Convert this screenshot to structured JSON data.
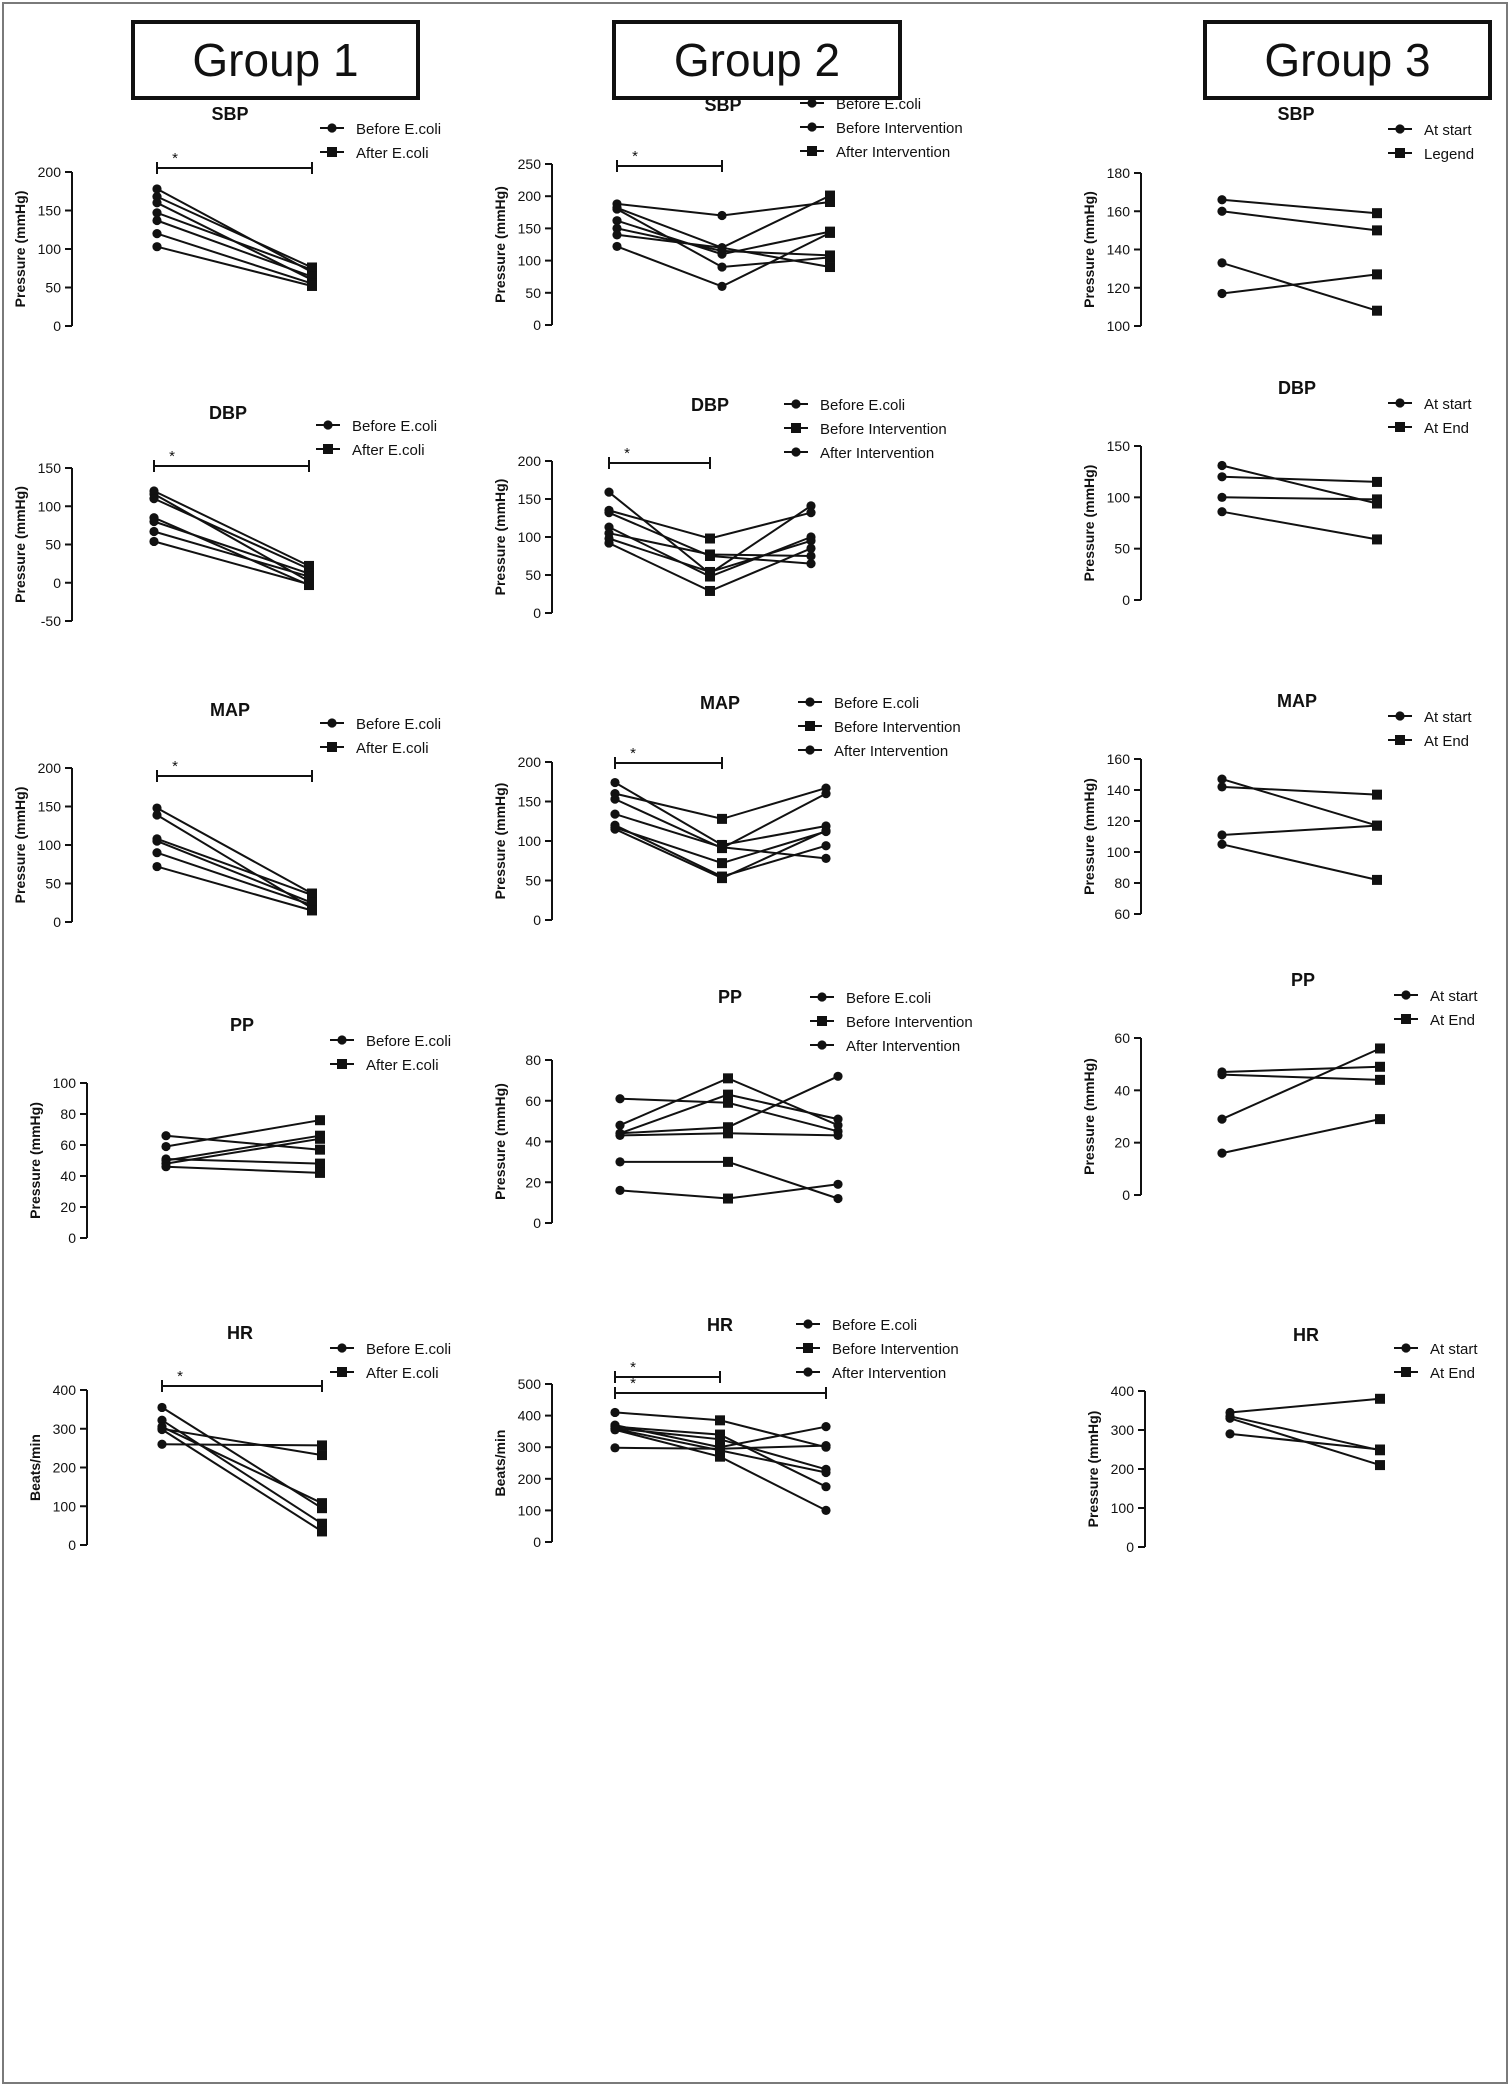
{
  "groups": [
    "Group 1",
    "Group 2",
    "Group 3"
  ],
  "chart_data": [
    {
      "id": "g1-sbp",
      "group": "Group 1",
      "type": "line",
      "title": "SBP",
      "ylabel": "Pressure (mmHg)",
      "ylim": [
        0,
        200
      ],
      "yticks": [
        0,
        50,
        100,
        150,
        200
      ],
      "categories": [
        "Before E.coli",
        "After E.coli"
      ],
      "legend": [
        {
          "label": "Before E.coli",
          "marker": "circle"
        },
        {
          "label": "After E.coli",
          "marker": "square"
        }
      ],
      "significance": [
        {
          "from": 0,
          "to": 1,
          "label": "*"
        }
      ],
      "series": [
        {
          "values": [
            178,
            70
          ]
        },
        {
          "values": [
            168,
            76
          ]
        },
        {
          "values": [
            160,
            60
          ]
        },
        {
          "values": [
            147,
            73
          ]
        },
        {
          "values": [
            137,
            64
          ]
        },
        {
          "values": [
            120,
            55
          ]
        },
        {
          "values": [
            103,
            52
          ]
        }
      ]
    },
    {
      "id": "g2-sbp",
      "group": "Group 2",
      "type": "line",
      "title": "SBP",
      "ylabel": "Pressure (mmHg)",
      "ylim": [
        0,
        250
      ],
      "yticks": [
        0,
        50,
        100,
        150,
        200,
        250
      ],
      "categories": [
        "Before E.coli",
        "Before Intervention",
        "After Intervention"
      ],
      "legend": [
        {
          "label": "Before E.coli",
          "marker": "circle"
        },
        {
          "label": "Before Intervention",
          "marker": "circle"
        },
        {
          "label": "After Intervention",
          "marker": "square"
        }
      ],
      "significance": [
        {
          "from": 0,
          "to": 1,
          "label": "*"
        }
      ],
      "series": [
        {
          "values": [
            188,
            170,
            191
          ]
        },
        {
          "values": [
            182,
            120,
            201
          ]
        },
        {
          "values": [
            162,
            110,
            145
          ]
        },
        {
          "values": [
            150,
            115,
            108
          ]
        },
        {
          "values": [
            140,
            120,
            90
          ]
        },
        {
          "values": [
            122,
            60,
            143
          ]
        },
        {
          "values": [
            180,
            90,
            105
          ]
        }
      ]
    },
    {
      "id": "g3-sbp",
      "group": "Group 3",
      "type": "line",
      "title": "SBP",
      "ylabel": "Pressure (mmHg)",
      "ylim": [
        100,
        180
      ],
      "yticks": [
        100,
        120,
        140,
        160,
        180
      ],
      "categories": [
        "At start",
        "Legend"
      ],
      "legend": [
        {
          "label": "At start",
          "marker": "circle"
        },
        {
          "label": "Legend",
          "marker": "square"
        }
      ],
      "significance": [],
      "series": [
        {
          "values": [
            166,
            159
          ]
        },
        {
          "values": [
            160,
            150
          ]
        },
        {
          "values": [
            133,
            108
          ]
        },
        {
          "values": [
            117,
            127
          ]
        }
      ]
    },
    {
      "id": "g1-dbp",
      "group": "Group 1",
      "type": "line",
      "title": "DBP",
      "ylabel": "Pressure (mmHg)",
      "ylim": [
        -50,
        150
      ],
      "yticks": [
        -50,
        0,
        50,
        100,
        150
      ],
      "categories": [
        "Before E.coli",
        "After E.coli"
      ],
      "legend": [
        {
          "label": "Before E.coli",
          "marker": "circle"
        },
        {
          "label": "After E.coli",
          "marker": "square"
        }
      ],
      "significance": [
        {
          "from": 0,
          "to": 1,
          "label": "*"
        }
      ],
      "series": [
        {
          "values": [
            120,
            22
          ]
        },
        {
          "values": [
            116,
            2
          ]
        },
        {
          "values": [
            110,
            18
          ]
        },
        {
          "values": [
            85,
            -3
          ]
        },
        {
          "values": [
            80,
            12
          ]
        },
        {
          "values": [
            67,
            8
          ]
        },
        {
          "values": [
            54,
            -2
          ]
        }
      ]
    },
    {
      "id": "g2-dbp",
      "group": "Group 2",
      "type": "line",
      "title": "DBP",
      "ylabel": "Pressure (mmHg)",
      "ylim": [
        0,
        200
      ],
      "yticks": [
        0,
        50,
        100,
        150,
        200
      ],
      "categories": [
        "Before E.coli",
        "Before Intervention",
        "After Intervention"
      ],
      "legend": [
        {
          "label": "Before E.coli",
          "marker": "circle"
        },
        {
          "label": "Before Intervention",
          "marker": "square"
        },
        {
          "label": "After Intervention",
          "marker": "circle"
        }
      ],
      "significance": [
        {
          "from": 0,
          "to": 1,
          "label": "*"
        }
      ],
      "series": [
        {
          "values": [
            159,
            52,
            141
          ]
        },
        {
          "values": [
            135,
            98,
            132
          ]
        },
        {
          "values": [
            132,
            75,
            65
          ]
        },
        {
          "values": [
            113,
            48,
            100
          ]
        },
        {
          "values": [
            105,
            77,
            75
          ]
        },
        {
          "values": [
            98,
            54,
            95
          ]
        },
        {
          "values": [
            92,
            29,
            85
          ]
        }
      ]
    },
    {
      "id": "g3-dbp",
      "group": "Group 3",
      "type": "line",
      "title": "DBP",
      "ylabel": "Pressure (mmHg)",
      "ylim": [
        0,
        150
      ],
      "yticks": [
        0,
        50,
        100,
        150
      ],
      "categories": [
        "At start",
        "At End"
      ],
      "legend": [
        {
          "label": "At start",
          "marker": "circle"
        },
        {
          "label": "At End",
          "marker": "square"
        }
      ],
      "significance": [],
      "series": [
        {
          "values": [
            131,
            94
          ]
        },
        {
          "values": [
            120,
            115
          ]
        },
        {
          "values": [
            100,
            98
          ]
        },
        {
          "values": [
            86,
            59
          ]
        }
      ]
    },
    {
      "id": "g1-map",
      "group": "Group 1",
      "type": "line",
      "title": "MAP",
      "ylabel": "Pressure (mmHg)",
      "ylim": [
        0,
        200
      ],
      "yticks": [
        0,
        50,
        100,
        150,
        200
      ],
      "categories": [
        "Before E.coli",
        "After E.coli"
      ],
      "legend": [
        {
          "label": "Before E.coli",
          "marker": "circle"
        },
        {
          "label": "After E.coli",
          "marker": "square"
        }
      ],
      "significance": [
        {
          "from": 0,
          "to": 1,
          "label": "*"
        }
      ],
      "series": [
        {
          "values": [
            148,
            37
          ]
        },
        {
          "values": [
            139,
            18
          ]
        },
        {
          "values": [
            108,
            35
          ]
        },
        {
          "values": [
            105,
            25
          ]
        },
        {
          "values": [
            90,
            22
          ]
        },
        {
          "values": [
            72,
            15
          ]
        }
      ]
    },
    {
      "id": "g2-map",
      "group": "Group 2",
      "type": "line",
      "title": "MAP",
      "ylabel": "Pressure (mmHg)",
      "ylim": [
        0,
        200
      ],
      "yticks": [
        0,
        50,
        100,
        150,
        200
      ],
      "categories": [
        "Before E.coli",
        "Before Intervention",
        "After Intervention"
      ],
      "legend": [
        {
          "label": "Before E.coli",
          "marker": "circle"
        },
        {
          "label": "Before Intervention",
          "marker": "square"
        },
        {
          "label": "After Intervention",
          "marker": "circle"
        }
      ],
      "significance": [
        {
          "from": 0,
          "to": 1,
          "label": "*"
        }
      ],
      "series": [
        {
          "values": [
            174,
            95,
            119
          ]
        },
        {
          "values": [
            160,
            128,
            167
          ]
        },
        {
          "values": [
            153,
            91,
            160
          ]
        },
        {
          "values": [
            134,
            92,
            78
          ]
        },
        {
          "values": [
            120,
            55,
            94
          ]
        },
        {
          "values": [
            117,
            72,
            112
          ]
        },
        {
          "values": [
            115,
            53,
            113
          ]
        }
      ]
    },
    {
      "id": "g3-map",
      "group": "Group 3",
      "type": "line",
      "title": "MAP",
      "ylabel": "Pressure (mmHg)",
      "ylim": [
        60,
        160
      ],
      "yticks": [
        60,
        80,
        100,
        120,
        140,
        160
      ],
      "categories": [
        "At start",
        "At End"
      ],
      "legend": [
        {
          "label": "At start",
          "marker": "circle"
        },
        {
          "label": "At End",
          "marker": "square"
        }
      ],
      "significance": [],
      "series": [
        {
          "values": [
            147,
            117
          ]
        },
        {
          "values": [
            142,
            137
          ]
        },
        {
          "values": [
            111,
            117
          ]
        },
        {
          "values": [
            105,
            82
          ]
        }
      ]
    },
    {
      "id": "g1-pp",
      "group": "Group 1",
      "type": "line",
      "title": "PP",
      "ylabel": "Pressure (mmHg)",
      "ylim": [
        0,
        100
      ],
      "yticks": [
        0,
        20,
        40,
        60,
        80,
        100
      ],
      "categories": [
        "Before E.coli",
        "After E.coli"
      ],
      "legend": [
        {
          "label": "Before E.coli",
          "marker": "circle"
        },
        {
          "label": "After E.coli",
          "marker": "square"
        }
      ],
      "significance": [],
      "series": [
        {
          "values": [
            66,
            57
          ]
        },
        {
          "values": [
            59,
            76
          ]
        },
        {
          "values": [
            51,
            48
          ]
        },
        {
          "values": [
            50,
            66
          ]
        },
        {
          "values": [
            48,
            64
          ]
        },
        {
          "values": [
            46,
            42
          ]
        }
      ]
    },
    {
      "id": "g2-pp",
      "group": "Group 2",
      "type": "line",
      "title": "PP",
      "ylabel": "Pressure (mmHg)",
      "ylim": [
        0,
        80
      ],
      "yticks": [
        0,
        20,
        40,
        60,
        80
      ],
      "categories": [
        "Before E.coli",
        "Before Intervention",
        "After Intervention"
      ],
      "legend": [
        {
          "label": "Before E.coli",
          "marker": "circle"
        },
        {
          "label": "Before Intervention",
          "marker": "square"
        },
        {
          "label": "After Intervention",
          "marker": "circle"
        }
      ],
      "significance": [],
      "series": [
        {
          "values": [
            61,
            59,
            45
          ]
        },
        {
          "values": [
            48,
            71,
            48
          ]
        },
        {
          "values": [
            44,
            63,
            51
          ]
        },
        {
          "values": [
            44,
            47,
            72
          ]
        },
        {
          "values": [
            43,
            44,
            43
          ]
        },
        {
          "values": [
            30,
            30,
            12
          ]
        },
        {
          "values": [
            16,
            12,
            19
          ]
        }
      ]
    },
    {
      "id": "g3-pp",
      "group": "Group 3",
      "type": "line",
      "title": "PP",
      "ylabel": "Pressure (mmHg)",
      "ylim": [
        0,
        60
      ],
      "yticks": [
        0,
        20,
        40,
        60
      ],
      "categories": [
        "At start",
        "At End"
      ],
      "legend": [
        {
          "label": "At start",
          "marker": "circle"
        },
        {
          "label": "At End",
          "marker": "square"
        }
      ],
      "significance": [],
      "series": [
        {
          "values": [
            47,
            49
          ]
        },
        {
          "values": [
            46,
            44
          ]
        },
        {
          "values": [
            29,
            56
          ]
        },
        {
          "values": [
            16,
            29
          ]
        }
      ]
    },
    {
      "id": "g1-hr",
      "group": "Group 1",
      "type": "line",
      "title": "HR",
      "ylabel": "Beats/min",
      "ylim": [
        0,
        400
      ],
      "yticks": [
        0,
        100,
        200,
        300,
        400
      ],
      "categories": [
        "Before E.coli",
        "After E.coli"
      ],
      "legend": [
        {
          "label": "Before E.coli",
          "marker": "circle"
        },
        {
          "label": "After E.coli",
          "marker": "square"
        }
      ],
      "significance": [
        {
          "from": 0,
          "to": 1,
          "label": "*"
        }
      ],
      "series": [
        {
          "values": [
            355,
            95
          ]
        },
        {
          "values": [
            322,
            55
          ]
        },
        {
          "values": [
            305,
            108
          ]
        },
        {
          "values": [
            298,
            35
          ]
        },
        {
          "values": [
            300,
            232
          ]
        },
        {
          "values": [
            260,
            257
          ]
        }
      ]
    },
    {
      "id": "g2-hr",
      "group": "Group 2",
      "type": "line",
      "title": "HR",
      "ylabel": "Beats/min",
      "ylim": [
        0,
        500
      ],
      "yticks": [
        0,
        100,
        200,
        300,
        400,
        500
      ],
      "categories": [
        "Before E.coli",
        "Before Intervention",
        "After Intervention"
      ],
      "legend": [
        {
          "label": "Before E.coli",
          "marker": "circle"
        },
        {
          "label": "Before Intervention",
          "marker": "square"
        },
        {
          "label": "After Intervention",
          "marker": "circle"
        }
      ],
      "significance": [
        {
          "from": 0,
          "to": 1,
          "label": "*"
        },
        {
          "from": 0,
          "to": 2,
          "label": "*"
        }
      ],
      "series": [
        {
          "values": [
            410,
            385,
            300
          ]
        },
        {
          "values": [
            370,
            300,
            365
          ]
        },
        {
          "values": [
            365,
            340,
            175
          ]
        },
        {
          "values": [
            360,
            325,
            230
          ]
        },
        {
          "values": [
            358,
            290,
            220
          ]
        },
        {
          "values": [
            355,
            270,
            100
          ]
        },
        {
          "values": [
            298,
            295,
            305
          ]
        }
      ]
    },
    {
      "id": "g3-hr",
      "group": "Group 3",
      "type": "line",
      "title": "HR",
      "ylabel": "Pressure (mmHg)",
      "ylim": [
        0,
        400
      ],
      "yticks": [
        0,
        100,
        200,
        300,
        400
      ],
      "categories": [
        "At start",
        "At End"
      ],
      "legend": [
        {
          "label": "At start",
          "marker": "circle"
        },
        {
          "label": "At End",
          "marker": "square"
        }
      ],
      "significance": [],
      "series": [
        {
          "values": [
            345,
            380
          ]
        },
        {
          "values": [
            335,
            248
          ]
        },
        {
          "values": [
            330,
            210
          ]
        },
        {
          "values": [
            290,
            250
          ]
        }
      ]
    }
  ]
}
